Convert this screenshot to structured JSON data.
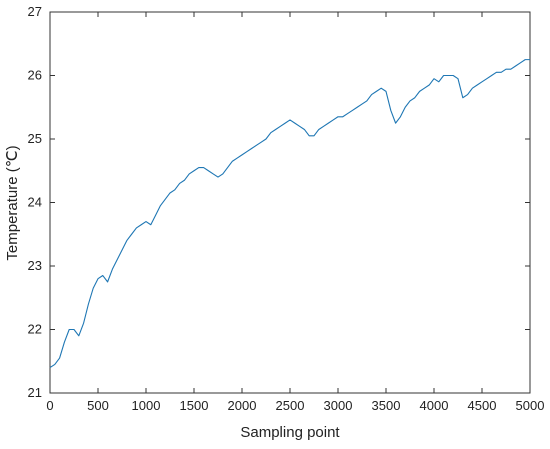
{
  "chart_data": {
    "type": "line",
    "title": "",
    "xlabel": "Sampling point",
    "ylabel": "Temperature (℃)",
    "xlim": [
      0,
      5000
    ],
    "ylim": [
      21,
      27
    ],
    "grid": false,
    "xticks": [
      0,
      500,
      1000,
      1500,
      2000,
      2500,
      3000,
      3500,
      4000,
      4500,
      5000
    ],
    "yticks": [
      21,
      22,
      23,
      24,
      25,
      26,
      27
    ],
    "line_color": "#1f77b4",
    "series": [
      {
        "x": [
          0,
          50,
          100,
          150,
          200,
          250,
          300,
          350,
          400,
          450,
          500,
          550,
          600,
          650,
          700,
          750,
          800,
          850,
          900,
          950,
          1000,
          1050,
          1100,
          1150,
          1200,
          1250,
          1300,
          1350,
          1400,
          1450,
          1500,
          1550,
          1600,
          1650,
          1700,
          1750,
          1800,
          1850,
          1900,
          1950,
          2000,
          2050,
          2100,
          2150,
          2200,
          2250,
          2300,
          2350,
          2400,
          2450,
          2500,
          2550,
          2600,
          2650,
          2700,
          2750,
          2800,
          2850,
          2900,
          2950,
          3000,
          3050,
          3100,
          3150,
          3200,
          3250,
          3300,
          3350,
          3400,
          3450,
          3500,
          3550,
          3600,
          3650,
          3700,
          3750,
          3800,
          3850,
          3900,
          3950,
          4000,
          4050,
          4100,
          4150,
          4200,
          4250,
          4300,
          4350,
          4400,
          4450,
          4500,
          4550,
          4600,
          4650,
          4700,
          4750,
          4800,
          4850,
          4900,
          4950,
          5000
        ],
        "values": [
          21.4,
          21.45,
          21.55,
          21.8,
          22.0,
          22.0,
          21.9,
          22.1,
          22.4,
          22.65,
          22.8,
          22.85,
          22.75,
          22.95,
          23.1,
          23.25,
          23.4,
          23.5,
          23.6,
          23.65,
          23.7,
          23.65,
          23.8,
          23.95,
          24.05,
          24.15,
          24.2,
          24.3,
          24.35,
          24.45,
          24.5,
          24.55,
          24.55,
          24.5,
          24.45,
          24.4,
          24.45,
          24.55,
          24.65,
          24.7,
          24.75,
          24.8,
          24.85,
          24.9,
          24.95,
          25.0,
          25.1,
          25.15,
          25.2,
          25.25,
          25.3,
          25.25,
          25.2,
          25.15,
          25.05,
          25.05,
          25.15,
          25.2,
          25.25,
          25.3,
          25.35,
          25.35,
          25.4,
          25.45,
          25.5,
          25.55,
          25.6,
          25.7,
          25.75,
          25.8,
          25.75,
          25.45,
          25.25,
          25.35,
          25.5,
          25.6,
          25.65,
          25.75,
          25.8,
          25.85,
          25.95,
          25.9,
          26.0,
          26.0,
          26.0,
          25.95,
          25.65,
          25.7,
          25.8,
          25.85,
          25.9,
          25.95,
          26.0,
          26.05,
          26.05,
          26.1,
          26.1,
          26.15,
          26.2,
          26.25,
          26.25
        ]
      }
    ]
  }
}
